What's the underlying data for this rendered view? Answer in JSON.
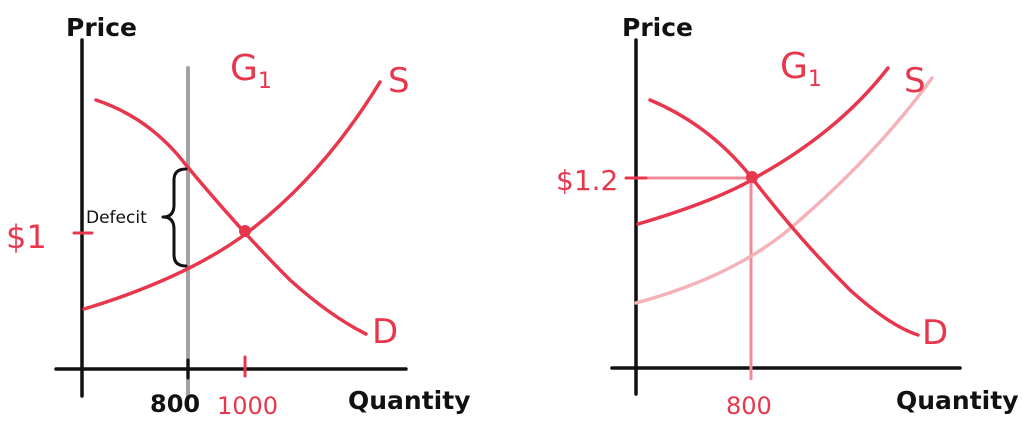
{
  "colors": {
    "curve": "#e8374d",
    "curve_faded": "#f4b3b8",
    "axis": "#111111",
    "gray_line": "#a3a3a3",
    "guide": "#f08c99"
  },
  "left_panel": {
    "y_axis_label": "Price",
    "x_axis_label": "Quantity",
    "curve_set_label": "G",
    "curve_set_subscript": "1",
    "supply_label": "S",
    "demand_label": "D",
    "price_tick_label": "$1",
    "quantity_tick_800": "800",
    "quantity_tick_1000": "1000",
    "deficit_label": "Defecit"
  },
  "right_panel": {
    "y_axis_label": "Price",
    "x_axis_label": "Quantity",
    "curve_set_label": "G",
    "curve_set_subscript": "1",
    "supply_label": "S",
    "demand_label": "D",
    "price_tick_label": "$1.2",
    "quantity_tick_800": "800"
  }
}
